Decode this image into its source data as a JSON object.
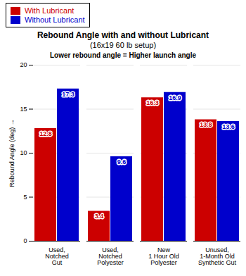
{
  "chart_data": {
    "type": "bar",
    "title": "Rebound Angle with and without Lubricant",
    "subtitle": "(16x19 60 lb setup)",
    "y_label": "Rebound Angle (deg)",
    "annotation": "Lower rebound angle = Higher launch angle",
    "categories": [
      "Used,\nNotched\nGut",
      "Used,\nNotched\nPolyester",
      "New\n1 Hour Old\nPolyester",
      "Unused,\n1-Month Old\nSynthetic Gut"
    ],
    "series": [
      {
        "name": "With Lubricant",
        "color": "#CC0000",
        "values": [
          12.8,
          3.4,
          16.3,
          13.8
        ]
      },
      {
        "name": "Without Lubricant",
        "color": "#0000CC",
        "values": [
          17.3,
          9.6,
          16.9,
          13.6
        ]
      }
    ],
    "ylim": [
      0,
      20
    ],
    "yticks": [
      0,
      5,
      10,
      15,
      20
    ],
    "grid": true,
    "legend": "upper left",
    "data_labels": true
  }
}
